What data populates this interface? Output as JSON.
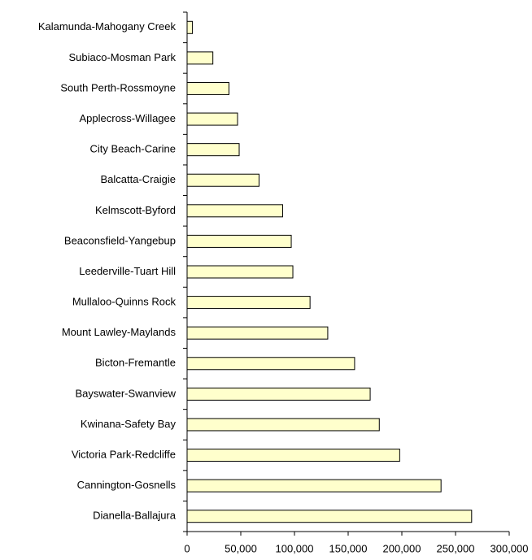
{
  "chart_data": {
    "type": "hbar",
    "categories": [
      "Kalamunda-Mahogany Creek",
      "Subiaco-Mosman Park",
      "South Perth-Rossmoyne",
      "Applecross-Willagee",
      "City Beach-Carine",
      "Balcatta-Craigie",
      "Kelmscott-Byford",
      "Beaconsfield-Yangebup",
      "Leederville-Tuart Hill",
      "Mullaloo-Quinns Rock",
      "Mount Lawley-Maylands",
      "Bicton-Fremantle",
      "Bayswater-Swanview",
      "Kwinana-Safety Bay",
      "Victoria Park-Redcliffe",
      "Cannington-Gosnells",
      "Dianella-Ballajura"
    ],
    "values": [
      5000,
      24000,
      39000,
      47000,
      48500,
      67000,
      89000,
      97000,
      98500,
      114500,
      131000,
      156000,
      170500,
      179000,
      198000,
      236500,
      265000
    ],
    "color": "#ffffcc",
    "xlim": [
      0,
      300000
    ],
    "xticks": [
      0,
      {
        "value": 50000,
        "label": "50,000"
      },
      {
        "value": 100000,
        "label": "100,000"
      },
      {
        "value": 150000,
        "label": "150,000"
      },
      {
        "value": 200000,
        "label": "200,000"
      },
      {
        "value": 250000,
        "label": "250,000"
      },
      {
        "value": 300000,
        "label": "300,000"
      }
    ]
  }
}
